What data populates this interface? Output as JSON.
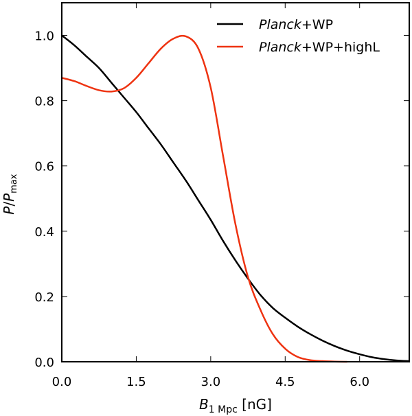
{
  "chart_data": {
    "type": "line",
    "xlabel": "B1 Mpc [nG]",
    "xlabel_parts": {
      "main": "B",
      "sub": "1 Mpc",
      "unit": " [nG]"
    },
    "ylabel": "P/Pmax",
    "ylabel_parts": {
      "main": "P",
      "slash": "/",
      "main2": "P",
      "sub": "max"
    },
    "xlim": [
      0.0,
      7.0
    ],
    "ylim": [
      0.0,
      1.1
    ],
    "xticks": [
      0.0,
      1.5,
      3.0,
      4.5,
      6.0
    ],
    "xtick_labels": [
      "0.0",
      "1.5",
      "3.0",
      "4.5",
      "6.0"
    ],
    "yticks": [
      0.0,
      0.2,
      0.4,
      0.6,
      0.8,
      1.0
    ],
    "ytick_labels": [
      "0.0",
      "0.2",
      "0.4",
      "0.6",
      "0.8",
      "1.0"
    ],
    "grid": false,
    "legend_position": "top-right",
    "series": [
      {
        "name": "Planck+WP",
        "name_parts": {
          "italic": "Planck",
          "rest": "+WP"
        },
        "color": "#000000",
        "x": [
          0.0,
          0.25,
          0.5,
          0.75,
          1.0,
          1.25,
          1.5,
          1.75,
          2.0,
          2.25,
          2.5,
          2.75,
          3.0,
          3.25,
          3.5,
          3.75,
          4.0,
          4.25,
          4.5,
          4.75,
          5.0,
          5.25,
          5.5,
          5.75,
          6.0,
          6.25,
          6.5,
          6.75,
          7.0
        ],
        "y": [
          1.0,
          0.97,
          0.935,
          0.9,
          0.855,
          0.81,
          0.765,
          0.715,
          0.665,
          0.61,
          0.555,
          0.495,
          0.435,
          0.37,
          0.31,
          0.255,
          0.205,
          0.165,
          0.135,
          0.108,
          0.085,
          0.065,
          0.048,
          0.034,
          0.023,
          0.014,
          0.008,
          0.004,
          0.002
        ]
      },
      {
        "name": "Planck+WP+highL",
        "name_parts": {
          "italic": "Planck",
          "rest": "+WP+highL"
        },
        "color": "#ee3311",
        "x": [
          0.0,
          0.25,
          0.5,
          0.75,
          1.0,
          1.25,
          1.5,
          1.75,
          2.0,
          2.25,
          2.5,
          2.75,
          3.0,
          3.25,
          3.5,
          3.75,
          4.0,
          4.25,
          4.5,
          4.75,
          5.0,
          5.25,
          5.5,
          5.75
        ],
        "y": [
          0.87,
          0.86,
          0.845,
          0.832,
          0.828,
          0.838,
          0.87,
          0.915,
          0.96,
          0.99,
          0.997,
          0.96,
          0.84,
          0.63,
          0.42,
          0.26,
          0.16,
          0.085,
          0.04,
          0.015,
          0.005,
          0.002,
          0.0005,
          0.0
        ]
      }
    ]
  }
}
